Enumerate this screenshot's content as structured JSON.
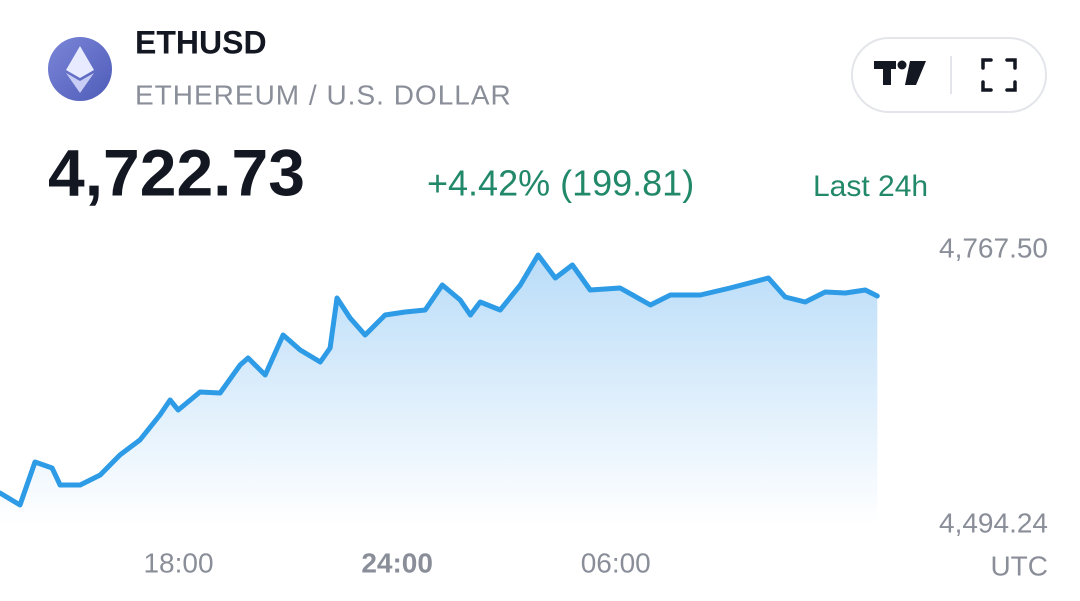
{
  "header": {
    "symbol": "ETHUSD",
    "name": "ETHEREUM / U.S. DOLLAR",
    "price": "4,722.73",
    "change": "+4.42% (199.81)",
    "period": "Last 24h"
  },
  "chart_data": {
    "type": "line",
    "color": "#2e9be6",
    "x": [
      13.1,
      13.65,
      14.06,
      14.53,
      14.75,
      15.3,
      15.85,
      16.39,
      16.94,
      17.49,
      17.77,
      17.99,
      18.59,
      19.14,
      19.69,
      19.91,
      20.38,
      20.87,
      21.34,
      21.89,
      22.16,
      22.35,
      22.71,
      23.12,
      23.67,
      24.22,
      24.77,
      25.24,
      25.73,
      26.01,
      26.28,
      26.83,
      27.38,
      27.87,
      28.34,
      28.81,
      29.3,
      30.12,
      30.95,
      31.5,
      32.32,
      33.14,
      34.19,
      34.65,
      35.2,
      35.75,
      36.3,
      36.85,
      37.18
    ],
    "values": [
      4526.0,
      4514.1,
      4556.8,
      4550.9,
      4534.0,
      4534.0,
      4543.9,
      4563.8,
      4578.7,
      4603.5,
      4618.4,
      4608.5,
      4626.4,
      4625.4,
      4653.2,
      4660.2,
      4643.3,
      4683.0,
      4668.1,
      4656.2,
      4670.1,
      4719.8,
      4699.9,
      4683.0,
      4702.9,
      4705.9,
      4707.9,
      4732.7,
      4717.8,
      4702.9,
      4715.8,
      4707.9,
      4732.7,
      4762.5,
      4739.7,
      4752.6,
      4727.8,
      4729.7,
      4712.8,
      4722.8,
      4722.8,
      4729.7,
      4739.7,
      4720.8,
      4715.8,
      4725.8,
      4724.8,
      4727.8,
      4721.8
    ],
    "xlim": [
      13.1,
      37.5
    ],
    "xticks": [
      {
        "value": 18,
        "label": "18:00"
      },
      {
        "value": 24,
        "label": "24:00"
      },
      {
        "value": 30,
        "label": "06:00"
      }
    ],
    "ylim": [
      4494.24,
      4767.5
    ],
    "yticks": [
      {
        "value": 4494.24,
        "label": "4,494.24"
      },
      {
        "value": 4767.5,
        "label": "4,767.50"
      }
    ],
    "timezone": "UTC"
  }
}
